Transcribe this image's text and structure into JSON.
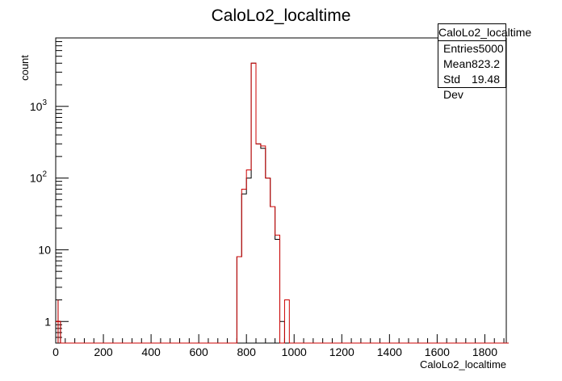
{
  "chart_data": {
    "type": "histogram",
    "title": "CaloLo2_localtime",
    "xlabel": "CaloLo2_localtime",
    "ylabel": "count",
    "xlim": [
      0,
      1890
    ],
    "ylim": [
      0.5,
      9000
    ],
    "yscale": "log",
    "x_ticks": [
      0,
      200,
      400,
      600,
      800,
      1000,
      1200,
      1400,
      1600,
      1800
    ],
    "y_ticks": [
      {
        "value": 1,
        "label": "1"
      },
      {
        "value": 10,
        "label": "10"
      },
      {
        "value": 100,
        "label": "10",
        "exp": "2"
      },
      {
        "value": 1000,
        "label": "10",
        "exp": "3"
      }
    ],
    "bin_width": 20,
    "series": [
      {
        "color": "#000000",
        "bins": [
          {
            "x": 0,
            "y": 1
          },
          {
            "x": 760,
            "y": 8
          },
          {
            "x": 780,
            "y": 60
          },
          {
            "x": 800,
            "y": 100
          },
          {
            "x": 820,
            "y": 4000
          },
          {
            "x": 840,
            "y": 300
          },
          {
            "x": 860,
            "y": 260
          },
          {
            "x": 880,
            "y": 100
          },
          {
            "x": 900,
            "y": 40
          },
          {
            "x": 920,
            "y": 14
          },
          {
            "x": 940,
            "y": 1
          }
        ]
      },
      {
        "color": "#cc0000",
        "bins": [
          {
            "x": 0,
            "y": 1
          },
          {
            "x": 760,
            "y": 8
          },
          {
            "x": 780,
            "y": 70
          },
          {
            "x": 800,
            "y": 130
          },
          {
            "x": 820,
            "y": 4000
          },
          {
            "x": 840,
            "y": 300
          },
          {
            "x": 860,
            "y": 280
          },
          {
            "x": 880,
            "y": 100
          },
          {
            "x": 900,
            "y": 40
          },
          {
            "x": 920,
            "y": 16
          },
          {
            "x": 960,
            "y": 2
          }
        ]
      }
    ],
    "stats": {
      "title": "CaloLo2_localtime",
      "rows": [
        {
          "label": "Entries",
          "value": "5000"
        },
        {
          "label": "Mean",
          "value": "823.2"
        },
        {
          "label": "Std Dev",
          "value": "19.48"
        }
      ]
    },
    "grid": false,
    "legend": "top-right"
  }
}
